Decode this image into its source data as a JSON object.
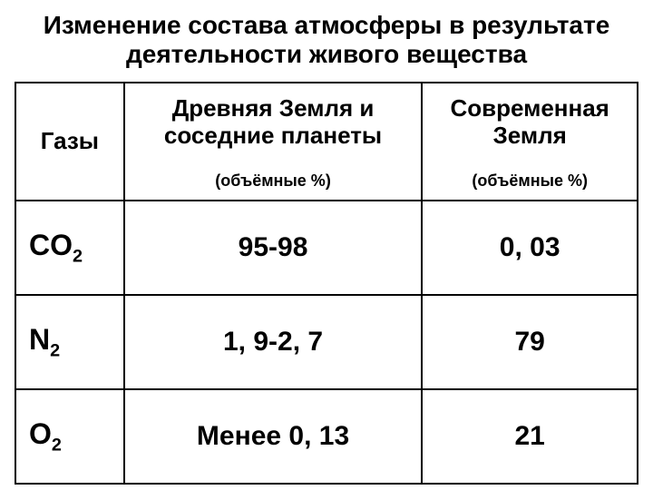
{
  "title": "Изменение состава атмосферы в результате деятельности живого вещества",
  "table": {
    "columns": {
      "gas": "Газы",
      "ancient": "Древняя Земля и соседние планеты",
      "modern": "Современная Земля",
      "unit": "(объёмные %)"
    },
    "rows": [
      {
        "gas_html": "CO<sub>2</sub>",
        "ancient": "95-98",
        "modern": "0, 03"
      },
      {
        "gas_html": "N<sub>2</sub>",
        "ancient": "1, 9-2, 7",
        "modern": "79"
      },
      {
        "gas_html": "O<sub>2</sub>",
        "ancient": "Менее 0, 13",
        "modern": "21"
      }
    ],
    "border_color": "#000000",
    "background_color": "#ffffff",
    "title_fontsize": 28,
    "header_fontsize": 26,
    "subheader_fontsize": 18,
    "gas_fontsize": 32,
    "value_fontsize": 30
  }
}
